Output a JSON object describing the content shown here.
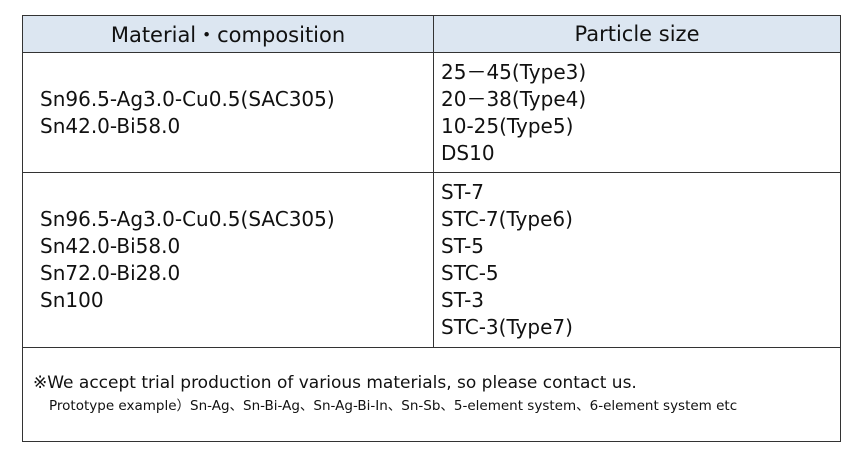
{
  "table": {
    "header": [
      "Material・composition",
      "Particle size"
    ],
    "rows": [
      [
        [
          "Sn96.5-Ag3.0-Cu0.5(SAC305)",
          "Sn42.0-Bi58.0"
        ],
        [
          "25－45(Type3)",
          "20－38(Type4)",
          "10-25(Type5)",
          "DS10"
        ]
      ],
      [
        [
          "Sn96.5-Ag3.0-Cu0.5(SAC305)",
          "Sn42.0-Bi58.0",
          "Sn72.0-Bi28.0",
          "Sn100"
        ],
        [
          "ST-7",
          "STC-7(Type6)",
          "ST-5",
          "STC-5",
          "ST-3",
          "STC-3(Type7)"
        ]
      ]
    ],
    "note": [
      "※We accept trial production of various materials, so please contact us.",
      "Prototype example）Sn-Ag、Sn-Bi-Ag、Sn-Ag-Bi-In、Sn-Sb、5-element system、6-element system  etc"
    ]
  }
}
